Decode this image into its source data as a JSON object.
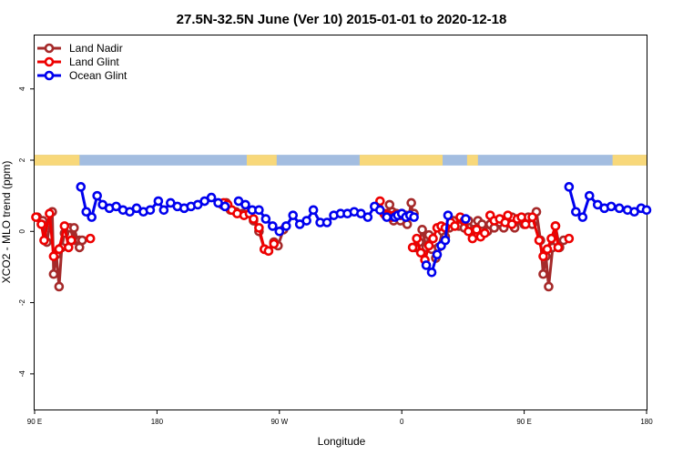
{
  "chart_data": {
    "type": "line",
    "title": "27.5N-32.5N June (Ver 10)   2015-01-01 to 2020-12-18",
    "xlabel": "Longitude",
    "ylabel": "XCO2 - MLO trend (ppm)",
    "xlim": [
      90,
      540
    ],
    "ylim": [
      -5,
      5.5
    ],
    "x_ticks": [
      {
        "value": 90,
        "label": "90 E"
      },
      {
        "value": 180,
        "label": "180"
      },
      {
        "value": 270,
        "label": "90 W"
      },
      {
        "value": 360,
        "label": "0"
      },
      {
        "value": 450,
        "label": "90 E"
      },
      {
        "value": 540,
        "label": "180"
      }
    ],
    "y_ticks": [
      {
        "value": -4,
        "label": "-4"
      },
      {
        "value": -2,
        "label": "-2"
      },
      {
        "value": 0,
        "label": "0"
      },
      {
        "value": 2,
        "label": "2"
      },
      {
        "value": 4,
        "label": "4"
      }
    ],
    "legend_position": "top-left",
    "land_sea_strip": {
      "y_range": [
        1.85,
        2.15
      ],
      "ocean_color": "#a3bde0",
      "land_color": "#f8d87a",
      "land_segments": [
        [
          90,
          123
        ],
        [
          246,
          268
        ],
        [
          329,
          390
        ],
        [
          408,
          416
        ],
        [
          515,
          540
        ]
      ]
    },
    "series": [
      {
        "name": "Land Nadir",
        "color": "#a52a2a",
        "x": [
          92,
          96,
          99,
          103,
          104,
          106,
          108,
          110,
          112,
          116,
          119,
          119,
          123,
          123,
          125
        ],
        "y": [
          0.4,
          0.3,
          -0.3,
          0.55,
          -1.2,
          -0.65,
          -1.55,
          -0.45,
          -0.05,
          0.1,
          -0.25,
          0.1,
          -0.45,
          -0.25,
          -0.25
        ],
        "mode": "solid"
      },
      {
        "name": "Land Nadir",
        "color": "#a52a2a",
        "x": [
          228,
          231,
          234,
          238,
          243,
          248,
          251,
          255,
          259,
          262,
          266,
          269,
          273
        ],
        "y": [
          0.75,
          0.8,
          0.6,
          0.55,
          0.5,
          0.5,
          0.3,
          0.0,
          -0.5,
          -0.55,
          -0.3,
          -0.4,
          0.05
        ],
        "mode": "solid"
      },
      {
        "name": "Land Nadir",
        "color": "#a52a2a",
        "x": [
          348,
          351,
          353,
          354,
          356,
          359,
          360,
          363,
          364,
          367,
          368,
          369
        ],
        "y": [
          0.45,
          0.75,
          0.55,
          0.3,
          0.5,
          0.3,
          0.5,
          0.45,
          0.2,
          0.8,
          0.45,
          0.5
        ],
        "mode": "solid"
      },
      {
        "name": "Land Nadir",
        "color": "#a52a2a",
        "x": [
          370,
          373,
          375,
          378,
          380,
          382,
          385,
          387,
          390,
          392,
          395,
          398,
          402,
          406,
          409,
          413,
          416,
          419,
          423
        ],
        "y": [
          -0.45,
          -0.3,
          0.05,
          -0.45,
          -0.1,
          -0.5,
          -0.75,
          -0.45,
          0.0,
          -0.15,
          0.1,
          0.3,
          0.15,
          0.1,
          0.3,
          0.05,
          0.3,
          0.2,
          0.0
        ],
        "mode": "solid"
      },
      {
        "name": "Land Nadir",
        "color": "#a52a2a",
        "x": [
          425,
          428,
          432,
          435,
          438,
          441,
          443,
          447,
          450,
          453,
          456,
          459,
          462,
          464,
          466,
          468,
          471,
          473,
          476,
          479
        ],
        "y": [
          0.2,
          0.1,
          0.25,
          0.1,
          0.35,
          0.4,
          0.1,
          0.3,
          0.2,
          0.4,
          0.2,
          0.55,
          -0.25,
          -1.2,
          -0.7,
          -1.55,
          -0.45,
          0.15,
          -0.45,
          -0.25
        ],
        "mode": "solid"
      },
      {
        "name": "Land Glint",
        "color": "#ee0000",
        "x": [
          91,
          95,
          97,
          101,
          104,
          108,
          112,
          115,
          117
        ],
        "y": [
          0.4,
          0.2,
          -0.25,
          0.5,
          -0.7,
          -0.5,
          0.15,
          -0.45,
          -0.25
        ],
        "mode": "solid"
      },
      {
        "name": "Land Glint",
        "color": "#ee0000",
        "x": [
          131
        ],
        "y": [
          -0.2
        ],
        "mode": "single"
      },
      {
        "name": "Land Glint",
        "color": "#ee0000",
        "x": [
          229,
          232,
          235,
          239,
          244,
          248,
          251,
          255,
          259,
          262,
          266
        ],
        "y": [
          0.8,
          0.75,
          0.6,
          0.5,
          0.45,
          0.5,
          0.35,
          0.1,
          -0.5,
          -0.55,
          -0.35
        ],
        "mode": "solid"
      },
      {
        "name": "Land Glint",
        "color": "#ee0000",
        "x": [
          344,
          347,
          349,
          351,
          353,
          355,
          359
        ],
        "y": [
          0.85,
          0.5,
          0.45,
          0.45,
          0.4,
          0.45,
          0.45
        ],
        "mode": "solid"
      },
      {
        "name": "Land Glint",
        "color": "#ee0000",
        "x": [
          368,
          371,
          374,
          377,
          380,
          383,
          386,
          389,
          392,
          396,
          399,
          403,
          406,
          409,
          412,
          415,
          418,
          421
        ],
        "y": [
          -0.45,
          -0.2,
          -0.6,
          -0.8,
          -0.4,
          -0.2,
          0.1,
          0.15,
          0.1,
          0.25,
          0.15,
          0.4,
          0.3,
          0.0,
          -0.2,
          0.05,
          -0.15,
          -0.05
        ],
        "mode": "solid"
      },
      {
        "name": "Land Glint",
        "color": "#ee0000",
        "x": [
          425,
          428,
          432,
          436,
          438,
          441,
          445,
          448,
          451,
          456,
          461,
          464,
          467,
          470,
          473,
          475
        ],
        "y": [
          0.45,
          0.3,
          0.35,
          0.25,
          0.45,
          0.2,
          0.35,
          0.4,
          0.2,
          0.4,
          -0.25,
          -0.7,
          -0.5,
          -0.2,
          0.15,
          -0.45
        ],
        "mode": "solid"
      },
      {
        "name": "Land Glint",
        "color": "#ee0000",
        "x": [
          483
        ],
        "y": [
          -0.2
        ],
        "mode": "single"
      },
      {
        "name": "Ocean Glint",
        "color": "#0000ee",
        "x": [
          124,
          128,
          132,
          136,
          140,
          145,
          150,
          155,
          160,
          165,
          170,
          175,
          181,
          185,
          190,
          195,
          200,
          205,
          210,
          215,
          220,
          225,
          230
        ],
        "y": [
          1.25,
          0.55,
          0.4,
          1.0,
          0.75,
          0.65,
          0.7,
          0.6,
          0.55,
          0.65,
          0.55,
          0.6,
          0.85,
          0.6,
          0.8,
          0.7,
          0.65,
          0.7,
          0.75,
          0.85,
          0.95,
          0.8,
          0.7
        ],
        "mode": "solid"
      },
      {
        "name": "Ocean Glint",
        "color": "#0000ee",
        "x": [
          240,
          245,
          250,
          255,
          260,
          265,
          270,
          275,
          280,
          285,
          290,
          295,
          300,
          305,
          310,
          315,
          320,
          325,
          330,
          335,
          340,
          344,
          349,
          355
        ],
        "y": [
          0.85,
          0.75,
          0.6,
          0.6,
          0.35,
          0.15,
          0.0,
          0.15,
          0.45,
          0.2,
          0.3,
          0.6,
          0.25,
          0.25,
          0.45,
          0.5,
          0.5,
          0.55,
          0.5,
          0.4,
          0.7,
          0.6,
          0.4,
          0.4
        ],
        "mode": "solid"
      },
      {
        "name": "Ocean Glint",
        "color": "#0000ee",
        "x": [
          357,
          360,
          363,
          366,
          369
        ],
        "y": [
          0.45,
          0.5,
          0.4,
          0.45,
          0.4
        ],
        "mode": "solid"
      },
      {
        "name": "Ocean Glint",
        "color": "#0000ee",
        "x": [
          378,
          382,
          386,
          389,
          392,
          394
        ],
        "y": [
          -0.95,
          -1.15,
          -0.65,
          -0.4,
          -0.25,
          0.45
        ],
        "mode": "solid"
      },
      {
        "name": "Ocean Glint",
        "color": "#0000ee",
        "x": [
          407
        ],
        "y": [
          0.35
        ],
        "mode": "single"
      },
      {
        "name": "Ocean Glint",
        "color": "#0000ee",
        "x": [
          483,
          488,
          493,
          498,
          504,
          509,
          514,
          520,
          526,
          531,
          536,
          540
        ],
        "y": [
          1.25,
          0.55,
          0.4,
          1.0,
          0.75,
          0.65,
          0.7,
          0.65,
          0.6,
          0.55,
          0.65,
          0.6
        ],
        "mode": "solid"
      }
    ]
  }
}
